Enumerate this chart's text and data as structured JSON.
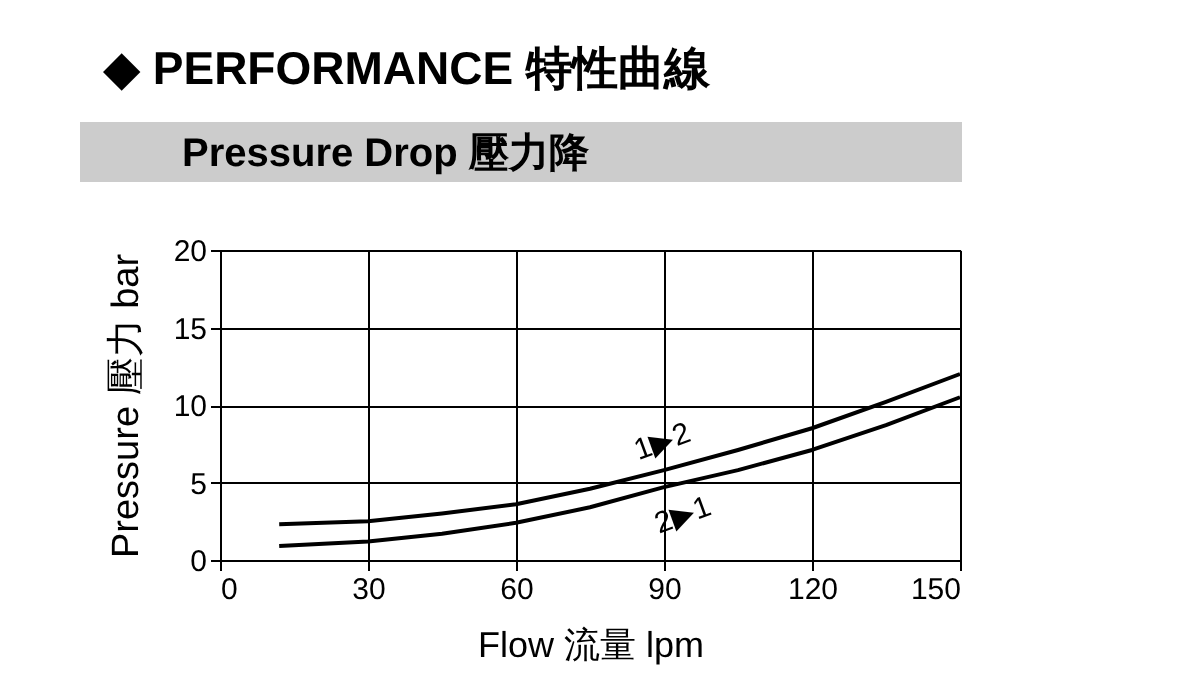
{
  "chart_data": {
    "type": "line",
    "title": "◆ PERFORMANCE 特性曲線",
    "subtitle": "Pressure Drop 壓力降",
    "xlabel": "Flow 流量 lpm",
    "ylabel": "Pressure 壓力 bar",
    "x": [
      12,
      30,
      45,
      60,
      75,
      90,
      105,
      120,
      135,
      150
    ],
    "series": [
      {
        "name": "1▶2",
        "color": "#000000",
        "values": [
          2.3,
          2.5,
          3.0,
          3.6,
          4.6,
          5.8,
          7.1,
          8.5,
          10.2,
          12.0
        ]
      },
      {
        "name": "2▶1",
        "color": "#000000",
        "values": [
          0.9,
          1.2,
          1.7,
          2.4,
          3.4,
          4.7,
          5.8,
          7.1,
          8.7,
          10.5
        ]
      }
    ],
    "xlim": [
      0,
      150
    ],
    "xticks": [
      0,
      30,
      60,
      90,
      120,
      150
    ],
    "ylim": [
      0,
      20
    ],
    "yticks": [
      0,
      5,
      10,
      15,
      20
    ],
    "grid": true,
    "marker": "none",
    "line_style": "solid"
  }
}
